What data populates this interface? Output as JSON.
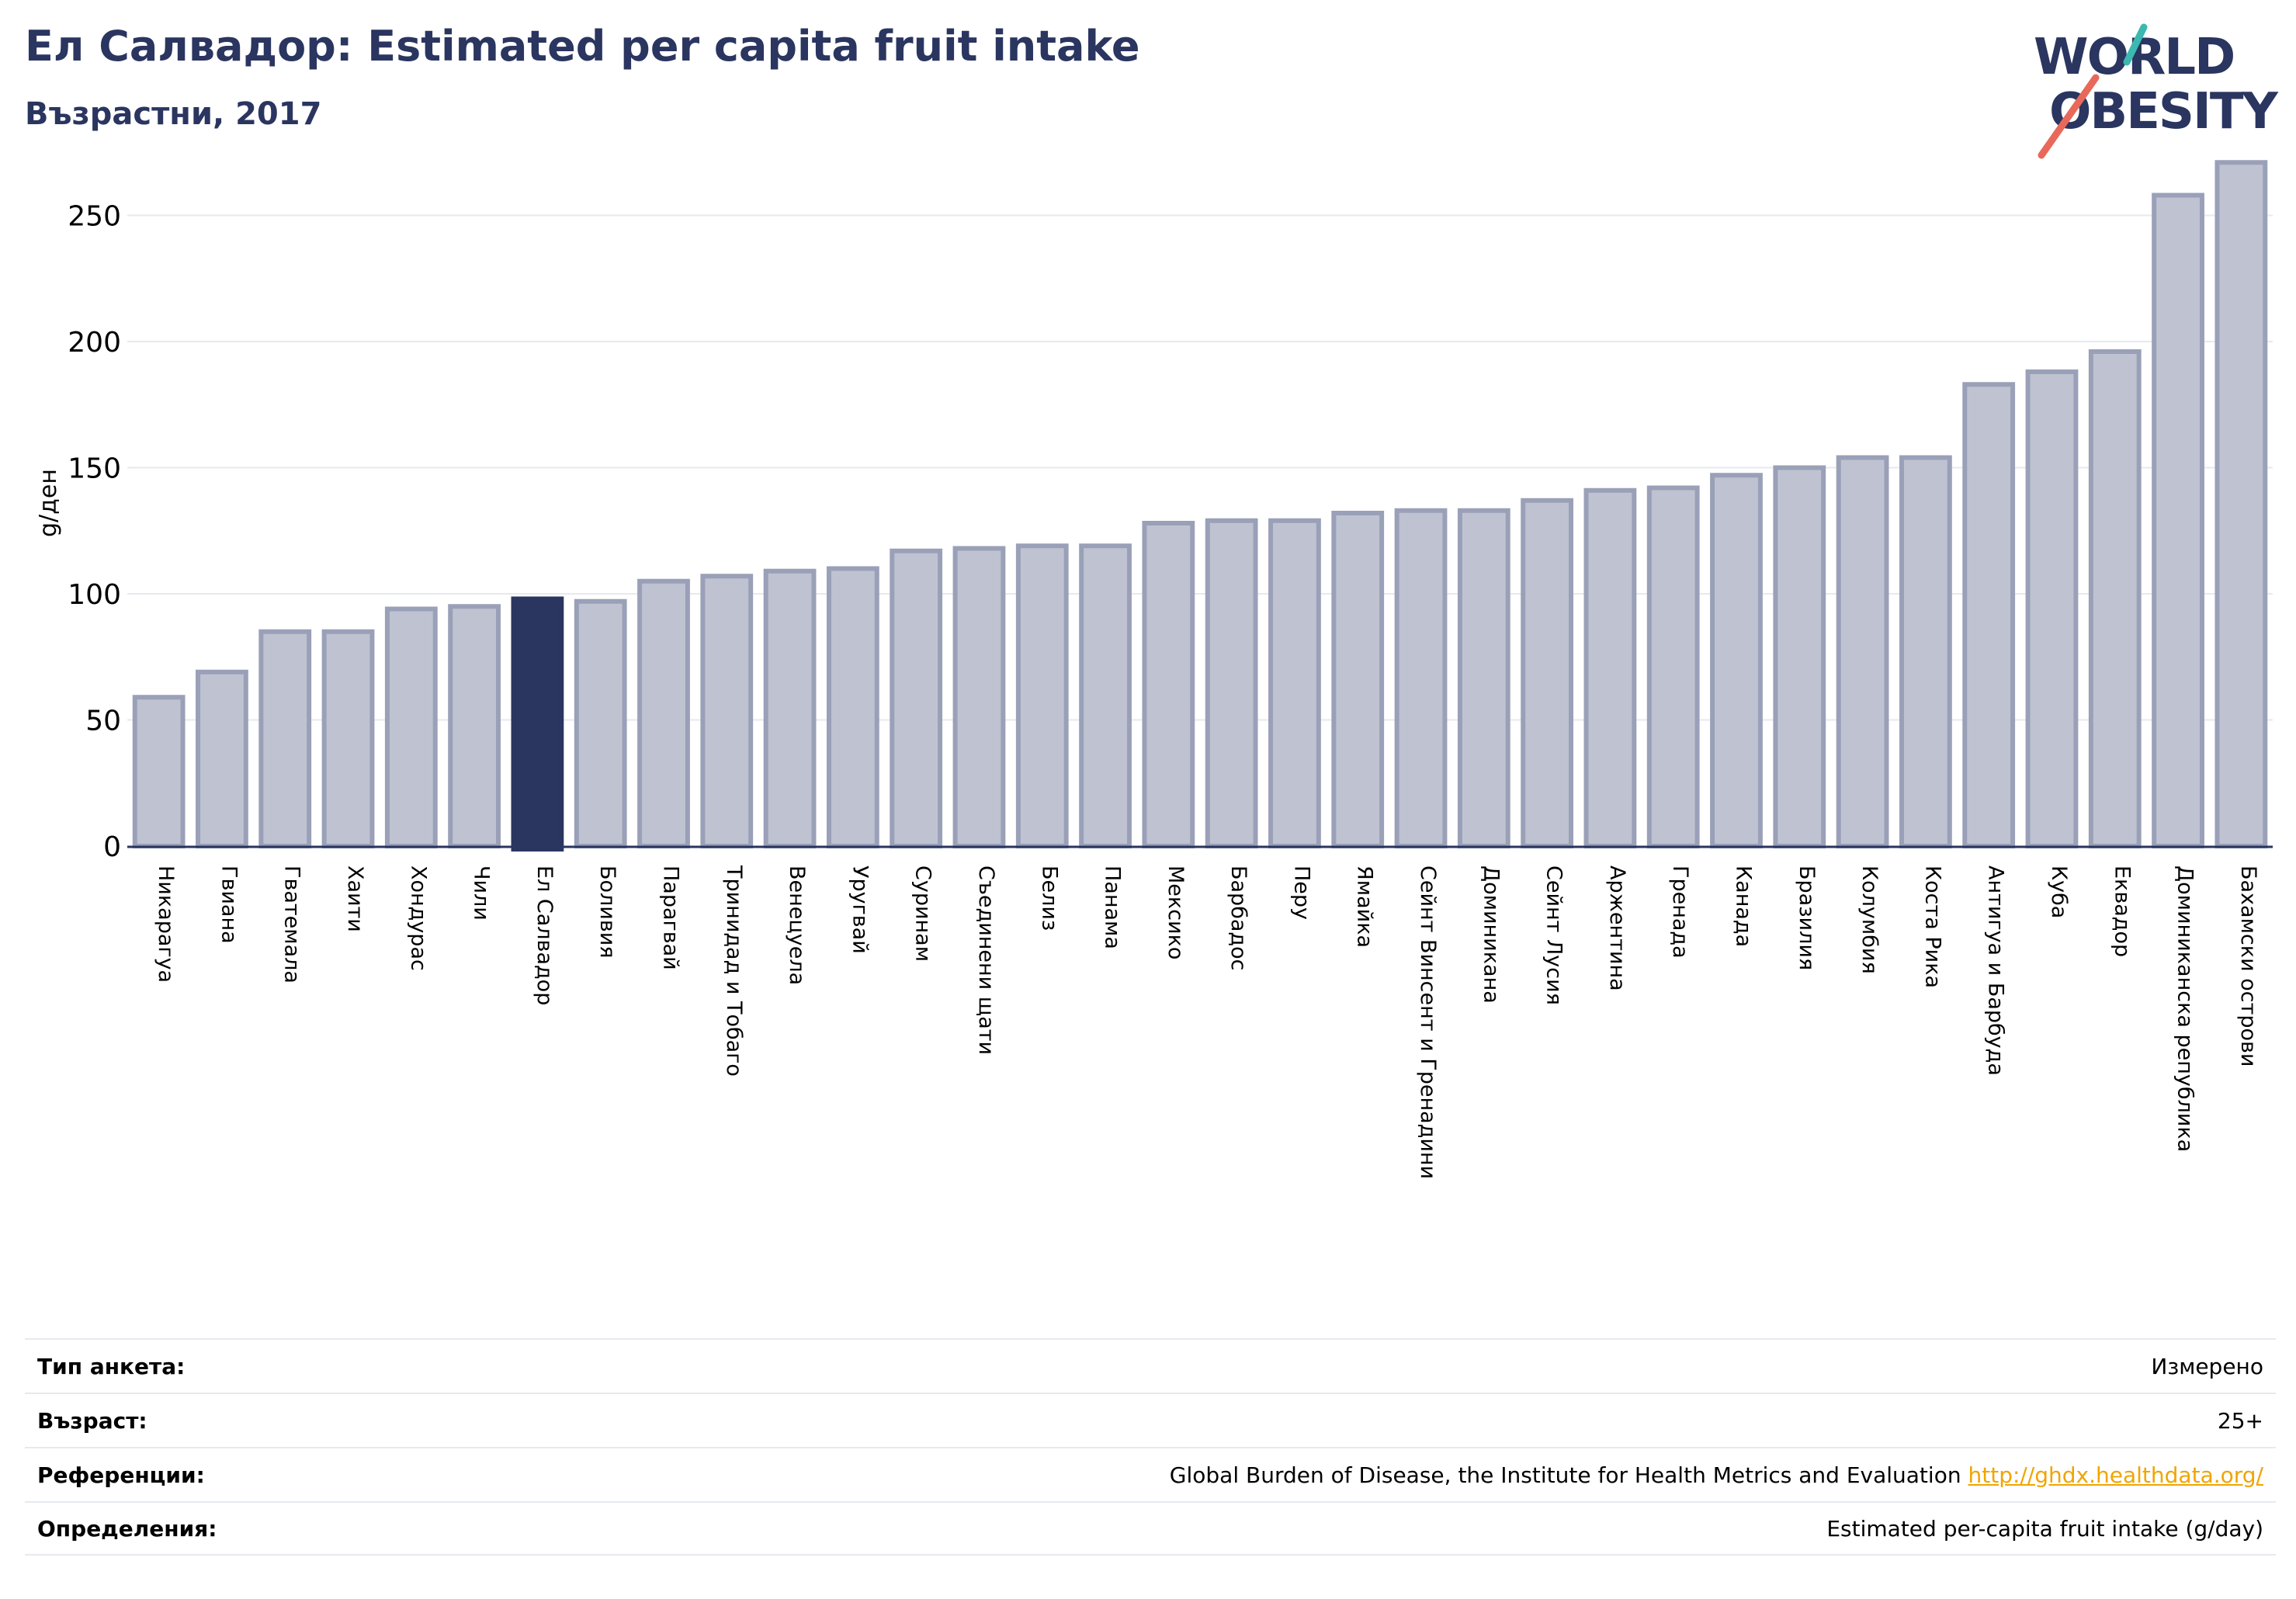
{
  "header": {
    "title": "Ел Салвадор: Estimated per capita fruit intake",
    "subtitle": "Възрастни, 2017"
  },
  "logo": {
    "line1": "WORLD",
    "line2": "OBESITY",
    "colors": {
      "text": "#2a3560",
      "teal": "#3bb8b0",
      "coral": "#e8695a"
    }
  },
  "colors": {
    "bar": "#bfc3d1",
    "bar_stroke": "#9aa0b8",
    "highlight": "#2a3560",
    "grid": "#e6e9ef",
    "axis": "#2a3560"
  },
  "chart_data": {
    "type": "bar",
    "ylabel": "g/ден",
    "ylim": [
      0,
      280
    ],
    "yticks": [
      0,
      50,
      100,
      150,
      200,
      250
    ],
    "highlight": "Ел Салвадор",
    "grid": true,
    "categories": [
      "Никарагуа",
      "Гвиана",
      "Гватемала",
      "Хаити",
      "Хондурас",
      "Чили",
      "Ел Салвадор",
      "Боливия",
      "Парагвай",
      "Тринидад и Тобаго",
      "Венецуела",
      "Уругвай",
      "Суринам",
      "Съединени щати",
      "Белиз",
      "Панама",
      "Мексико",
      "Барбадос",
      "Перу",
      "Ямайка",
      "Сейнт Винсент и Гренадини",
      "Доминикана",
      "Сейнт Лусия",
      "Аржентина",
      "Гренада",
      "Канада",
      "Бразилия",
      "Колумбия",
      "Коста Рика",
      "Антигуа и Барбуда",
      "Куба",
      "Еквадор",
      "Доминиканска република",
      "Бахамски острови"
    ],
    "values": [
      59,
      69,
      85,
      85,
      94,
      95,
      98,
      97,
      105,
      107,
      109,
      110,
      117,
      118,
      119,
      119,
      128,
      129,
      129,
      132,
      133,
      133,
      137,
      141,
      142,
      147,
      150,
      154,
      154,
      183,
      188,
      196,
      258,
      271
    ]
  },
  "footer": {
    "rows": [
      {
        "label": "Тип анкета:",
        "value": "Измерено"
      },
      {
        "label": "Възраст:",
        "value": "25+"
      },
      {
        "label": "Референции:",
        "value": "Global Burden of Disease, the Institute for Health Metrics and Evaluation",
        "link": "http://ghdx.healthdata.org/"
      },
      {
        "label": "Определения:",
        "value": "Estimated per-capita fruit intake (g/day)"
      }
    ]
  }
}
